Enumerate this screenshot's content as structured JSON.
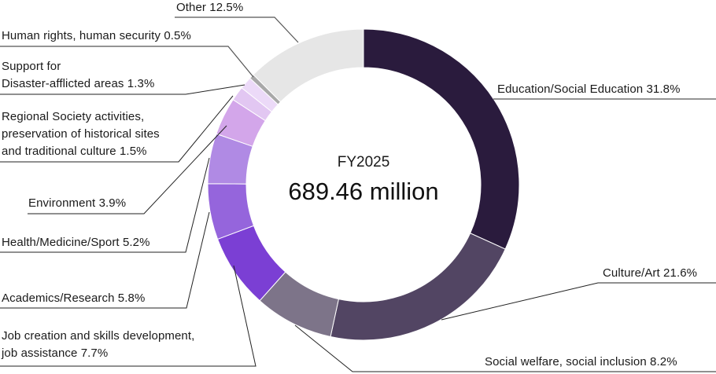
{
  "center": {
    "title": "FY2025",
    "value": "689.46 million"
  },
  "chart_data": {
    "type": "pie",
    "variant": "donut",
    "title": "FY2025",
    "center_label": "689.46 million",
    "units": "percent",
    "start_angle": "12 o'clock",
    "direction": "clockwise",
    "categories": [
      "Education/Social Education",
      "Culture/Art",
      "Social welfare, social inclusion",
      "Job creation and skills development, job assistance",
      "Academics/Research",
      "Health/Medicine/Sport",
      "Environment",
      "Regional Society activities, preservation of historical sites and traditional culture",
      "Support for Disaster-afflicted areas",
      "Human rights, human security",
      "Other"
    ],
    "values": [
      31.8,
      21.6,
      8.2,
      7.7,
      5.8,
      5.2,
      3.9,
      1.5,
      1.3,
      0.5,
      12.5
    ],
    "colors": [
      "#2a1b3d",
      "#524563",
      "#7d7489",
      "#7b3fd4",
      "#9565dc",
      "#b08ae4",
      "#d3a6ea",
      "#e2c7f2",
      "#ecdaf8",
      "#a8a8a8",
      "#e6e6e6"
    ]
  },
  "labels": [
    {
      "id": "education",
      "text": "Education/Social Education 31.8%"
    },
    {
      "id": "culture",
      "text": "Culture/Art 21.6%"
    },
    {
      "id": "social",
      "text": "Social welfare, social inclusion 8.2%"
    },
    {
      "id": "job_line1",
      "text": "Job creation and skills development,"
    },
    {
      "id": "job_line2",
      "text": "job assistance 7.7%"
    },
    {
      "id": "academics",
      "text": "Academics/Research 5.8%"
    },
    {
      "id": "health",
      "text": "Health/Medicine/Sport 5.2%"
    },
    {
      "id": "environment",
      "text": "Environment 3.9%"
    },
    {
      "id": "regional_line1",
      "text": "Regional Society activities,"
    },
    {
      "id": "regional_line2",
      "text": "preservation of historical sites"
    },
    {
      "id": "regional_line3",
      "text": "and traditional culture 1.5%"
    },
    {
      "id": "disaster_line1",
      "text": "Support for"
    },
    {
      "id": "disaster_line2",
      "text": "Disaster-afflicted areas 1.3%"
    },
    {
      "id": "human_rights",
      "text": "Human rights, human security 0.5%"
    },
    {
      "id": "other",
      "text": "Other 12.5%"
    }
  ]
}
